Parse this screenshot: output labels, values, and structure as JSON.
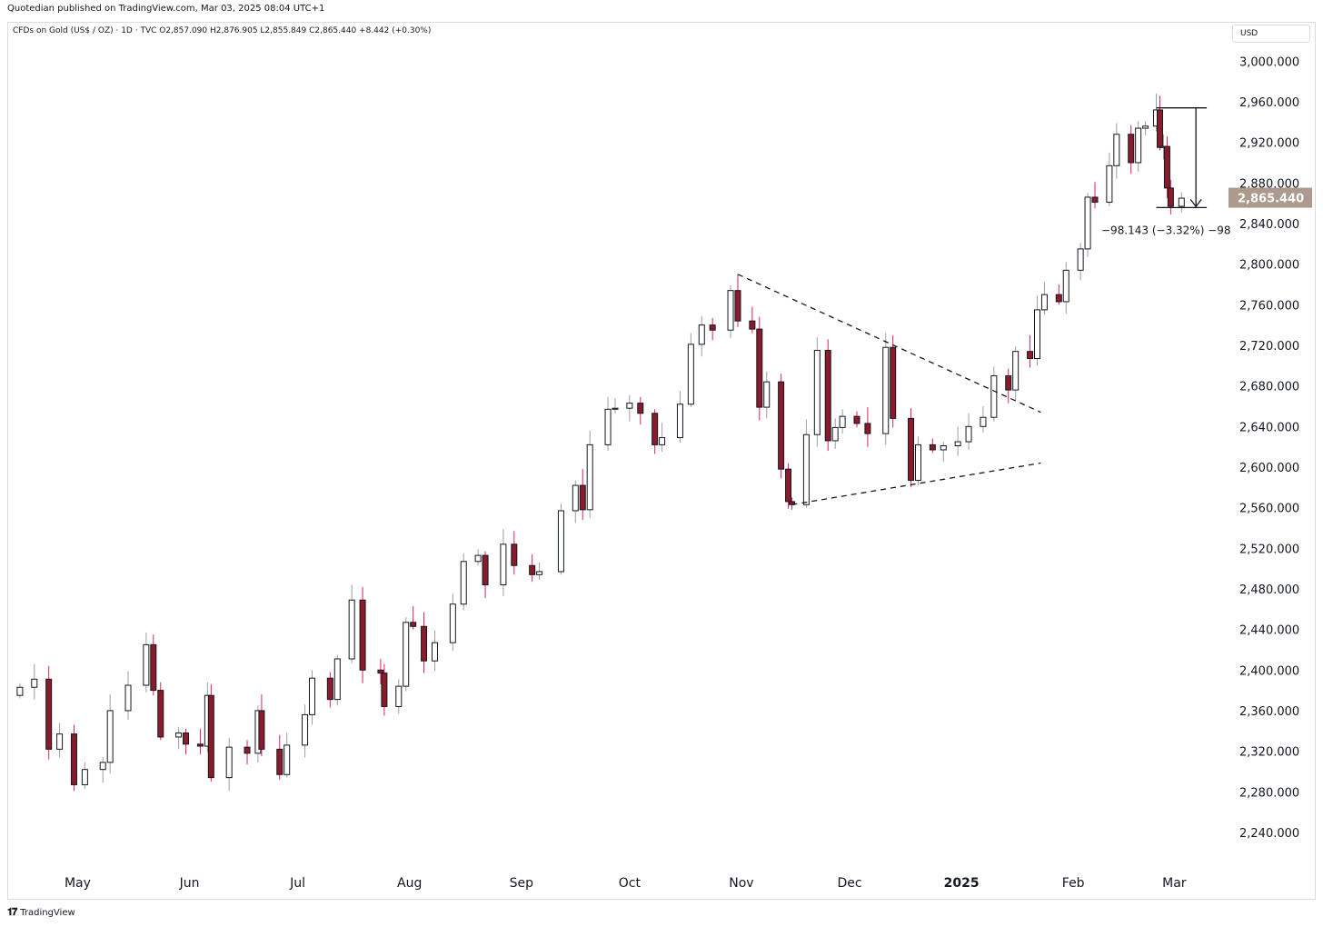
{
  "header": {
    "publisher": "Quotedian published on TradingView.com, Mar 03, 2025 08:04 UTC+1",
    "symbol_info": "CFDs on Gold (US$ / OZ) · 1D · TVC  O2,857.090  H2,876.905  L2,855.849  C2,865.440  +8.442 (+0.30%)",
    "currency": "USD"
  },
  "footer": {
    "logo_mark": "𝟏𝟕",
    "logo_text": "TradingView"
  },
  "colors": {
    "up_body": "#ffffff",
    "down_body": "#8b1a2b",
    "outline": "#131722",
    "up_wick": "#9e9e9e",
    "down_wick": "#e0205a",
    "price_tag": "#ab9a8d",
    "trendline": "#131722",
    "axis_text": "#131722"
  },
  "chart_data": {
    "type": "candlestick",
    "title": "CFDs on Gold (US$ / OZ)",
    "xlabel": "",
    "ylabel": "",
    "ylim": [
      2205,
      3020
    ],
    "y_ticks": [
      "3,000.000",
      "2,960.000",
      "2,920.000",
      "2,880.000",
      "2,840.000",
      "2,800.000",
      "2,760.000",
      "2,720.000",
      "2,680.000",
      "2,640.000",
      "2,600.000",
      "2,560.000",
      "2,520.000",
      "2,480.000",
      "2,440.000",
      "2,400.000",
      "2,360.000",
      "2,320.000",
      "2,280.000",
      "2,240.000"
    ],
    "x_ticks": [
      {
        "label": "May",
        "date": "2024-05-01"
      },
      {
        "label": "Jun",
        "date": "2024-06-01"
      },
      {
        "label": "Jul",
        "date": "2024-07-01"
      },
      {
        "label": "Aug",
        "date": "2024-08-01"
      },
      {
        "label": "Sep",
        "date": "2024-09-01"
      },
      {
        "label": "Oct",
        "date": "2024-10-01"
      },
      {
        "label": "Nov",
        "date": "2024-11-01"
      },
      {
        "label": "Dec",
        "date": "2024-12-01"
      },
      {
        "label": "2025",
        "date": "2025-01-01",
        "bold": true
      },
      {
        "label": "Feb",
        "date": "2025-02-01"
      },
      {
        "label": "Mar",
        "date": "2025-03-01"
      }
    ],
    "last_price": {
      "value": 2865.44,
      "label": "2,865.440"
    },
    "measure": {
      "from": 2954.0,
      "to": 2855.8,
      "label": "−98.143 (−3.32%) −98"
    },
    "trendlines": [
      {
        "from": [
          "2024-10-31",
          2790
        ],
        "to": [
          "2025-01-23",
          2654
        ]
      },
      {
        "from": [
          "2024-11-15",
          2563
        ],
        "to": [
          "2025-01-23",
          2604
        ]
      }
    ],
    "closes": [
      {
        "date": "2024-04-15",
        "close": 2383
      },
      {
        "date": "2024-04-19",
        "close": 2391
      },
      {
        "date": "2024-04-23",
        "close": 2322
      },
      {
        "date": "2024-04-26",
        "close": 2337
      },
      {
        "date": "2024-04-30",
        "close": 2287
      },
      {
        "date": "2024-05-03",
        "close": 2302
      },
      {
        "date": "2024-05-08",
        "close": 2309
      },
      {
        "date": "2024-05-10",
        "close": 2360
      },
      {
        "date": "2024-05-15",
        "close": 2385
      },
      {
        "date": "2024-05-20",
        "close": 2425
      },
      {
        "date": "2024-05-22",
        "close": 2380
      },
      {
        "date": "2024-05-24",
        "close": 2334
      },
      {
        "date": "2024-05-29",
        "close": 2338
      },
      {
        "date": "2024-05-31",
        "close": 2327
      },
      {
        "date": "2024-06-04",
        "close": 2325
      },
      {
        "date": "2024-06-06",
        "close": 2375
      },
      {
        "date": "2024-06-07",
        "close": 2294
      },
      {
        "date": "2024-06-12",
        "close": 2324
      },
      {
        "date": "2024-06-17",
        "close": 2318
      },
      {
        "date": "2024-06-20",
        "close": 2360
      },
      {
        "date": "2024-06-21",
        "close": 2322
      },
      {
        "date": "2024-06-26",
        "close": 2297
      },
      {
        "date": "2024-06-28",
        "close": 2326
      },
      {
        "date": "2024-07-03",
        "close": 2356
      },
      {
        "date": "2024-07-05",
        "close": 2392
      },
      {
        "date": "2024-07-10",
        "close": 2371
      },
      {
        "date": "2024-07-12",
        "close": 2411
      },
      {
        "date": "2024-07-16",
        "close": 2469
      },
      {
        "date": "2024-07-19",
        "close": 2400
      },
      {
        "date": "2024-07-24",
        "close": 2397
      },
      {
        "date": "2024-07-25",
        "close": 2364
      },
      {
        "date": "2024-07-29",
        "close": 2384
      },
      {
        "date": "2024-07-31",
        "close": 2447
      },
      {
        "date": "2024-08-02",
        "close": 2443
      },
      {
        "date": "2024-08-05",
        "close": 2409
      },
      {
        "date": "2024-08-08",
        "close": 2427
      },
      {
        "date": "2024-08-13",
        "close": 2465
      },
      {
        "date": "2024-08-16",
        "close": 2507
      },
      {
        "date": "2024-08-20",
        "close": 2513
      },
      {
        "date": "2024-08-22",
        "close": 2484
      },
      {
        "date": "2024-08-27",
        "close": 2524
      },
      {
        "date": "2024-08-30",
        "close": 2503
      },
      {
        "date": "2024-09-04",
        "close": 2494
      },
      {
        "date": "2024-09-06",
        "close": 2497
      },
      {
        "date": "2024-09-12",
        "close": 2557
      },
      {
        "date": "2024-09-16",
        "close": 2582
      },
      {
        "date": "2024-09-18",
        "close": 2558
      },
      {
        "date": "2024-09-20",
        "close": 2622
      },
      {
        "date": "2024-09-25",
        "close": 2657
      },
      {
        "date": "2024-09-27",
        "close": 2658
      },
      {
        "date": "2024-10-01",
        "close": 2663
      },
      {
        "date": "2024-10-04",
        "close": 2653
      },
      {
        "date": "2024-10-08",
        "close": 2622
      },
      {
        "date": "2024-10-10",
        "close": 2629
      },
      {
        "date": "2024-10-15",
        "close": 2662
      },
      {
        "date": "2024-10-18",
        "close": 2721
      },
      {
        "date": "2024-10-21",
        "close": 2740
      },
      {
        "date": "2024-10-24",
        "close": 2735
      },
      {
        "date": "2024-10-29",
        "close": 2774
      },
      {
        "date": "2024-10-31",
        "close": 2744
      },
      {
        "date": "2024-11-04",
        "close": 2736
      },
      {
        "date": "2024-11-06",
        "close": 2659
      },
      {
        "date": "2024-11-08",
        "close": 2684
      },
      {
        "date": "2024-11-12",
        "close": 2598
      },
      {
        "date": "2024-11-14",
        "close": 2566
      },
      {
        "date": "2024-11-15",
        "close": 2563
      },
      {
        "date": "2024-11-19",
        "close": 2632
      },
      {
        "date": "2024-11-22",
        "close": 2715
      },
      {
        "date": "2024-11-25",
        "close": 2626
      },
      {
        "date": "2024-11-27",
        "close": 2639
      },
      {
        "date": "2024-11-29",
        "close": 2650
      },
      {
        "date": "2024-12-03",
        "close": 2643
      },
      {
        "date": "2024-12-06",
        "close": 2633
      },
      {
        "date": "2024-12-11",
        "close": 2718
      },
      {
        "date": "2024-12-13",
        "close": 2648
      },
      {
        "date": "2024-12-18",
        "close": 2587
      },
      {
        "date": "2024-12-20",
        "close": 2622
      },
      {
        "date": "2024-12-24",
        "close": 2617
      },
      {
        "date": "2024-12-27",
        "close": 2621
      },
      {
        "date": "2024-12-31",
        "close": 2625
      },
      {
        "date": "2025-01-03",
        "close": 2640
      },
      {
        "date": "2025-01-07",
        "close": 2649
      },
      {
        "date": "2025-01-10",
        "close": 2690
      },
      {
        "date": "2025-01-14",
        "close": 2676
      },
      {
        "date": "2025-01-16",
        "close": 2714
      },
      {
        "date": "2025-01-20",
        "close": 2707
      },
      {
        "date": "2025-01-22",
        "close": 2755
      },
      {
        "date": "2025-01-24",
        "close": 2770
      },
      {
        "date": "2025-01-28",
        "close": 2763
      },
      {
        "date": "2025-01-30",
        "close": 2794
      },
      {
        "date": "2025-02-03",
        "close": 2815
      },
      {
        "date": "2025-02-05",
        "close": 2866
      },
      {
        "date": "2025-02-07",
        "close": 2861
      },
      {
        "date": "2025-02-11",
        "close": 2897
      },
      {
        "date": "2025-02-13",
        "close": 2928
      },
      {
        "date": "2025-02-17",
        "close": 2900
      },
      {
        "date": "2025-02-19",
        "close": 2934
      },
      {
        "date": "2025-02-21",
        "close": 2936
      },
      {
        "date": "2025-02-24",
        "close": 2952
      },
      {
        "date": "2025-02-25",
        "close": 2915
      },
      {
        "date": "2025-02-26",
        "close": 2916
      },
      {
        "date": "2025-02-27",
        "close": 2875
      },
      {
        "date": "2025-02-28",
        "close": 2857
      },
      {
        "date": "2025-03-03",
        "close": 2865
      }
    ]
  }
}
